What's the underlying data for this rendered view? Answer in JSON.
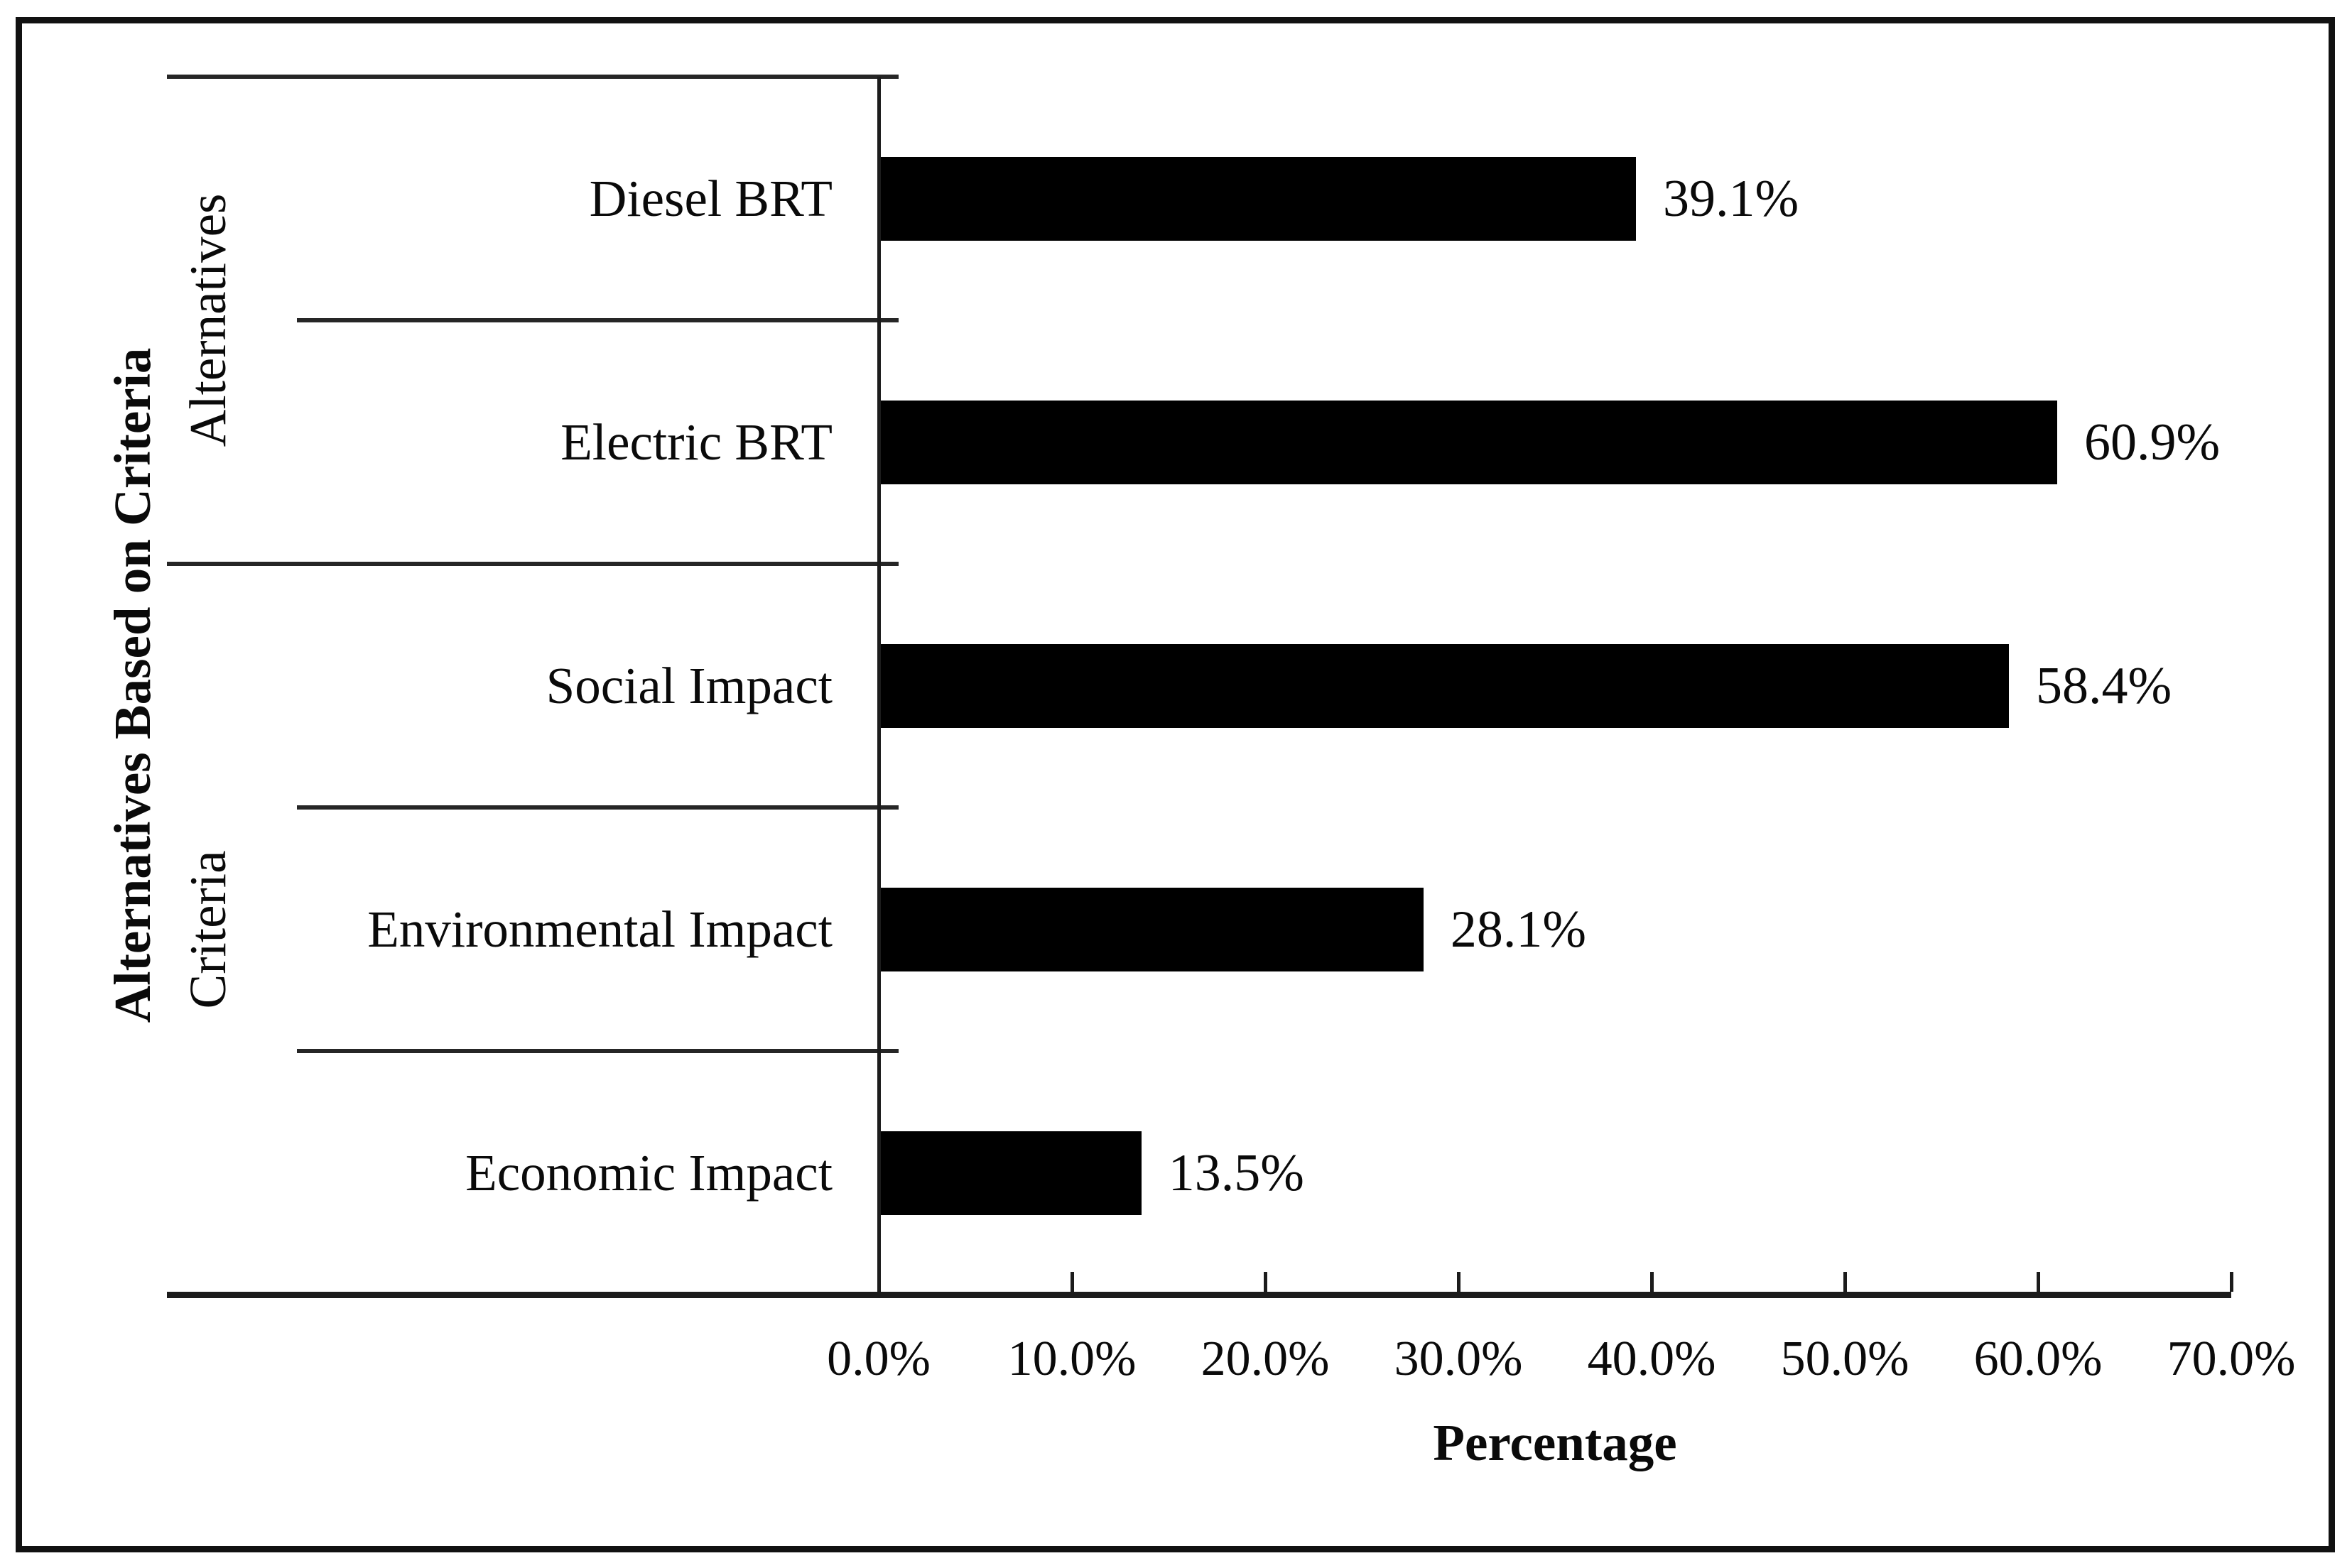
{
  "chart_data": {
    "type": "bar",
    "orientation": "horizontal",
    "title": "",
    "xlabel": "Percentage",
    "ylabel": "Alternatives Based on Criteria",
    "categories": [
      "Diesel BRT",
      "Electric BRT",
      "Social Impact",
      "Environmental Impact",
      "Economic Impact"
    ],
    "values": [
      39.1,
      60.9,
      58.4,
      28.1,
      13.5
    ],
    "value_labels": [
      "39.1%",
      "60.9%",
      "58.4%",
      "28.1%",
      "13.5%"
    ],
    "groups": [
      {
        "label": "Alternatives",
        "start": 0,
        "end": 2
      },
      {
        "label": "Criteria",
        "start": 2,
        "end": 5
      }
    ],
    "x_ticks": [
      0,
      10,
      20,
      30,
      40,
      50,
      60,
      70
    ],
    "x_tick_labels": [
      "0.0%",
      "10.0%",
      "20.0%",
      "30.0%",
      "40.0%",
      "50.0%",
      "60.0%",
      "70.0%"
    ],
    "xlim": [
      0,
      70
    ],
    "bar_color": "#000000",
    "background_color": "#ffffff",
    "grid": false,
    "legend": false
  }
}
